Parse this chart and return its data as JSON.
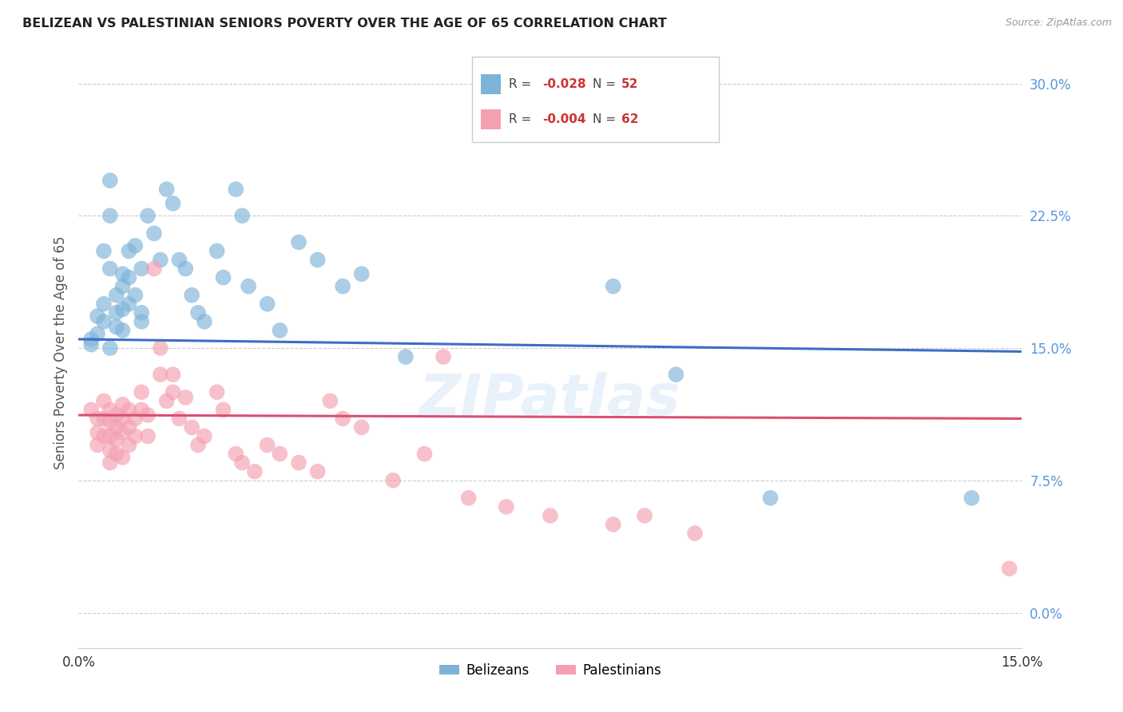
{
  "title": "BELIZEAN VS PALESTINIAN SENIORS POVERTY OVER THE AGE OF 65 CORRELATION CHART",
  "source": "Source: ZipAtlas.com",
  "ylabel": "Seniors Poverty Over the Age of 65",
  "ytick_labels": [
    "0.0%",
    "7.5%",
    "15.0%",
    "22.5%",
    "30.0%"
  ],
  "ytick_values": [
    0.0,
    7.5,
    15.0,
    22.5,
    30.0
  ],
  "xlim": [
    0.0,
    15.0
  ],
  "ylim": [
    -2.0,
    31.5
  ],
  "legend_r_blue": "R = -0.028",
  "legend_n_blue": "N = 52",
  "legend_r_pink": "R = -0.004",
  "legend_n_pink": "N = 62",
  "legend_label_blue": "Belizeans",
  "legend_label_pink": "Palestinians",
  "blue_color": "#7EB3D8",
  "pink_color": "#F4A0B0",
  "blue_line_color": "#3A6FC4",
  "pink_line_color": "#D95070",
  "watermark": "ZIPatlas",
  "blue_trend": [
    15.5,
    14.8
  ],
  "pink_trend": [
    11.2,
    11.0
  ],
  "blue_scatter": [
    [
      0.2,
      15.5
    ],
    [
      0.2,
      15.2
    ],
    [
      0.3,
      16.8
    ],
    [
      0.3,
      15.8
    ],
    [
      0.4,
      20.5
    ],
    [
      0.4,
      17.5
    ],
    [
      0.4,
      16.5
    ],
    [
      0.5,
      24.5
    ],
    [
      0.5,
      22.5
    ],
    [
      0.5,
      19.5
    ],
    [
      0.5,
      15.0
    ],
    [
      0.6,
      18.0
    ],
    [
      0.6,
      17.0
    ],
    [
      0.6,
      16.2
    ],
    [
      0.7,
      19.2
    ],
    [
      0.7,
      18.5
    ],
    [
      0.7,
      17.2
    ],
    [
      0.7,
      16.0
    ],
    [
      0.8,
      20.5
    ],
    [
      0.8,
      19.0
    ],
    [
      0.8,
      17.5
    ],
    [
      0.9,
      20.8
    ],
    [
      0.9,
      18.0
    ],
    [
      1.0,
      19.5
    ],
    [
      1.0,
      17.0
    ],
    [
      1.0,
      16.5
    ],
    [
      1.1,
      22.5
    ],
    [
      1.2,
      21.5
    ],
    [
      1.3,
      20.0
    ],
    [
      1.4,
      24.0
    ],
    [
      1.5,
      23.2
    ],
    [
      1.6,
      20.0
    ],
    [
      1.7,
      19.5
    ],
    [
      1.8,
      18.0
    ],
    [
      1.9,
      17.0
    ],
    [
      2.0,
      16.5
    ],
    [
      2.2,
      20.5
    ],
    [
      2.3,
      19.0
    ],
    [
      2.5,
      24.0
    ],
    [
      2.6,
      22.5
    ],
    [
      2.7,
      18.5
    ],
    [
      3.0,
      17.5
    ],
    [
      3.2,
      16.0
    ],
    [
      3.5,
      21.0
    ],
    [
      3.8,
      20.0
    ],
    [
      4.2,
      18.5
    ],
    [
      4.5,
      19.2
    ],
    [
      5.2,
      14.5
    ],
    [
      8.5,
      18.5
    ],
    [
      9.5,
      13.5
    ],
    [
      11.0,
      6.5
    ],
    [
      14.2,
      6.5
    ]
  ],
  "pink_scatter": [
    [
      0.2,
      11.5
    ],
    [
      0.3,
      11.0
    ],
    [
      0.3,
      10.2
    ],
    [
      0.3,
      9.5
    ],
    [
      0.4,
      12.0
    ],
    [
      0.4,
      11.0
    ],
    [
      0.4,
      10.0
    ],
    [
      0.5,
      11.5
    ],
    [
      0.5,
      10.8
    ],
    [
      0.5,
      10.0
    ],
    [
      0.5,
      9.2
    ],
    [
      0.5,
      8.5
    ],
    [
      0.6,
      11.2
    ],
    [
      0.6,
      10.5
    ],
    [
      0.6,
      9.8
    ],
    [
      0.6,
      9.0
    ],
    [
      0.7,
      11.8
    ],
    [
      0.7,
      11.0
    ],
    [
      0.7,
      10.2
    ],
    [
      0.7,
      8.8
    ],
    [
      0.8,
      11.5
    ],
    [
      0.8,
      10.5
    ],
    [
      0.8,
      9.5
    ],
    [
      0.9,
      11.0
    ],
    [
      0.9,
      10.0
    ],
    [
      1.0,
      12.5
    ],
    [
      1.0,
      11.5
    ],
    [
      1.1,
      11.2
    ],
    [
      1.1,
      10.0
    ],
    [
      1.2,
      19.5
    ],
    [
      1.3,
      15.0
    ],
    [
      1.3,
      13.5
    ],
    [
      1.4,
      12.0
    ],
    [
      1.5,
      13.5
    ],
    [
      1.5,
      12.5
    ],
    [
      1.6,
      11.0
    ],
    [
      1.7,
      12.2
    ],
    [
      1.8,
      10.5
    ],
    [
      1.9,
      9.5
    ],
    [
      2.0,
      10.0
    ],
    [
      2.2,
      12.5
    ],
    [
      2.3,
      11.5
    ],
    [
      2.5,
      9.0
    ],
    [
      2.6,
      8.5
    ],
    [
      2.8,
      8.0
    ],
    [
      3.0,
      9.5
    ],
    [
      3.2,
      9.0
    ],
    [
      3.5,
      8.5
    ],
    [
      3.8,
      8.0
    ],
    [
      4.0,
      12.0
    ],
    [
      4.2,
      11.0
    ],
    [
      4.5,
      10.5
    ],
    [
      5.0,
      7.5
    ],
    [
      5.5,
      9.0
    ],
    [
      5.8,
      14.5
    ],
    [
      6.2,
      6.5
    ],
    [
      6.8,
      6.0
    ],
    [
      7.5,
      5.5
    ],
    [
      8.5,
      5.0
    ],
    [
      9.0,
      5.5
    ],
    [
      9.8,
      4.5
    ],
    [
      14.8,
      2.5
    ]
  ]
}
